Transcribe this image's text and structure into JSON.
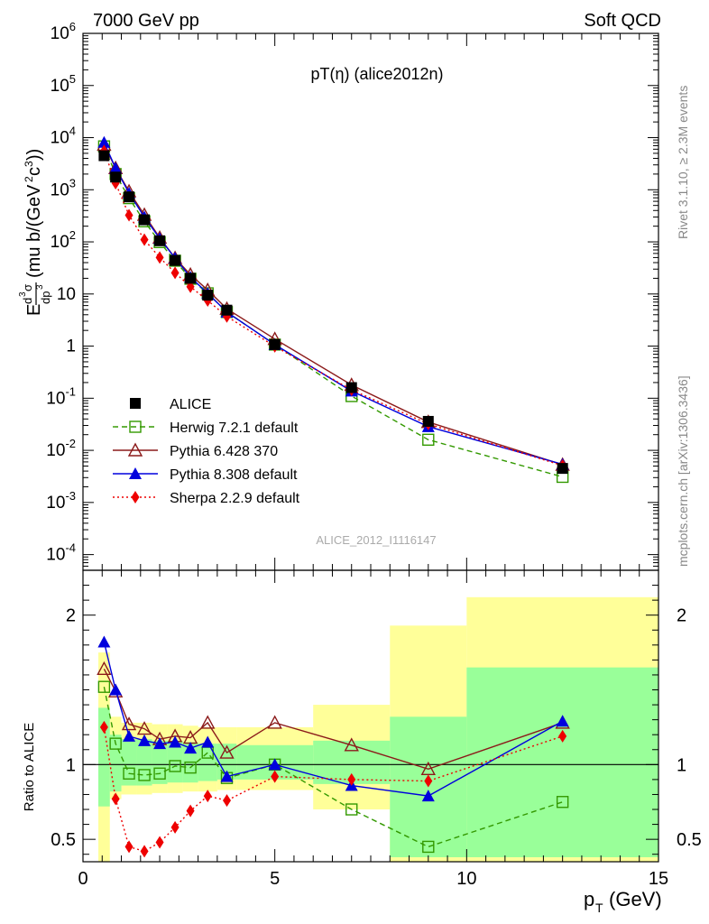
{
  "header": {
    "left": "7000 GeV pp",
    "right": "Soft QCD"
  },
  "title": "pT(η) (alice2012n)",
  "side_text": {
    "rivet": "Rivet 3.1.10, ≥ 2.3M events",
    "mcplots": "mcplots.cern.ch [arXiv:1306.3436]"
  },
  "watermark": "ALICE_2012_I1116147",
  "xlabel": "p_T (GeV)",
  "ylabel_ratio": "Ratio to ALICE",
  "chart_data": [
    {
      "type": "scatter",
      "panel": "main",
      "title": "pT(η) (alice2012n)",
      "ylabel": "E d³σ/dp³ (mu b/(GeV²c³))",
      "xlabel": "p_T (GeV)",
      "xlim": [
        0,
        15
      ],
      "ylim": [
        5e-05,
        1000000.0
      ],
      "yscale": "log",
      "y_ticks": [
        "10^-4",
        "10^-3",
        "10^-2",
        "10^-1",
        "1",
        "10",
        "10^2",
        "10^3",
        "10^4",
        "10^5",
        "10^6"
      ],
      "x_ticks": [
        "0",
        "5",
        "10",
        "15"
      ],
      "legend_position": "bottom-left",
      "x": [
        0.55,
        0.85,
        1.2,
        1.6,
        2.0,
        2.4,
        2.8,
        3.25,
        3.75,
        5.0,
        7.0,
        9.0,
        12.5
      ],
      "series": [
        {
          "name": "ALICE",
          "color": "#000000",
          "marker": "filled-square",
          "line": "none",
          "values": [
            4500,
            1750,
            730,
            265,
            105,
            44,
            20,
            9.5,
            4.9,
            1.07,
            0.16,
            0.036,
            0.0045
          ]
        },
        {
          "name": "Herwig 7.2.1 default",
          "color": "#339900",
          "marker": "open-square",
          "line": "dashed",
          "values": [
            6800,
            2000,
            690,
            248,
            99,
            43.5,
            19.6,
            10.3,
            4.5,
            1.07,
            0.11,
            0.016,
            0.0031
          ]
        },
        {
          "name": "Pythia 6.428 370",
          "color": "#8b1a1a",
          "marker": "open-triangle",
          "line": "solid",
          "values": [
            7300,
            2600,
            930,
            330,
            120,
            49,
            23.5,
            11.9,
            5.2,
            1.37,
            0.18,
            0.035,
            0.0053
          ]
        },
        {
          "name": "Pythia 8.308 default",
          "color": "#0000dd",
          "marker": "filled-triangle",
          "line": "solid",
          "values": [
            8100,
            2600,
            860,
            300,
            116,
            49,
            21,
            10.3,
            4.5,
            1.07,
            0.137,
            0.0285,
            0.0054
          ]
        },
        {
          "name": "Sherpa 2.2.9 default",
          "color": "#ee0000",
          "marker": "filled-diamond",
          "line": "dotted",
          "values": [
            5550,
            1340,
            325,
            110,
            50,
            25.5,
            13.8,
            7.5,
            3.7,
            0.99,
            0.145,
            0.032,
            0.0051
          ]
        }
      ]
    },
    {
      "type": "line",
      "panel": "ratio",
      "ylabel": "Ratio to ALICE",
      "xlabel": "p_T (GeV)",
      "xlim": [
        0,
        15
      ],
      "ylim": [
        0.35,
        2.3
      ],
      "y_ticks": [
        "0.5",
        "1",
        "2"
      ],
      "x": [
        0.55,
        0.85,
        1.2,
        1.6,
        2.0,
        2.4,
        2.8,
        3.25,
        3.75,
        5.0,
        7.0,
        9.0,
        12.5
      ],
      "band_edges": [
        0.4,
        0.7,
        1.0,
        1.4,
        1.8,
        2.2,
        2.6,
        3.0,
        3.5,
        4.0,
        6.0,
        8.0,
        10.0,
        15.0
      ],
      "band_green": [
        [
          0.72,
          1.38
        ],
        [
          0.82,
          1.2
        ],
        [
          0.86,
          1.17
        ],
        [
          0.86,
          1.17
        ],
        [
          0.87,
          1.16
        ],
        [
          0.88,
          1.16
        ],
        [
          0.88,
          1.15
        ],
        [
          0.89,
          1.14
        ],
        [
          0.9,
          1.14
        ],
        [
          0.9,
          1.13
        ],
        [
          0.87,
          1.16
        ],
        [
          0.38,
          1.32
        ],
        [
          0.38,
          1.65
        ]
      ],
      "band_yellow": [
        [
          0.35,
          1.75
        ],
        [
          0.77,
          1.32
        ],
        [
          0.8,
          1.28
        ],
        [
          0.8,
          1.28
        ],
        [
          0.81,
          1.27
        ],
        [
          0.81,
          1.27
        ],
        [
          0.82,
          1.26
        ],
        [
          0.82,
          1.25
        ],
        [
          0.83,
          1.25
        ],
        [
          0.83,
          1.25
        ],
        [
          0.7,
          1.4
        ],
        [
          0.35,
          1.93
        ],
        [
          0.35,
          2.12
        ]
      ],
      "series": [
        {
          "name": "Herwig 7.2.1 default",
          "color": "#339900",
          "values": [
            1.52,
            1.14,
            0.94,
            0.93,
            0.94,
            0.99,
            0.98,
            1.08,
            0.91,
            1.0,
            0.7,
            0.45,
            0.75
          ]
        },
        {
          "name": "Pythia 6.428 370",
          "color": "#8b1a1a",
          "values": [
            1.64,
            1.49,
            1.27,
            1.24,
            1.17,
            1.19,
            1.18,
            1.28,
            1.08,
            1.28,
            1.13,
            0.97,
            1.28
          ]
        },
        {
          "name": "Pythia 8.308 default",
          "color": "#0000dd",
          "values": [
            1.82,
            1.5,
            1.19,
            1.16,
            1.14,
            1.15,
            1.11,
            1.15,
            0.92,
            1.0,
            0.86,
            0.79,
            1.29
          ]
        },
        {
          "name": "Sherpa 2.2.9 default",
          "color": "#ee0000",
          "values": [
            1.25,
            0.77,
            0.45,
            0.42,
            0.48,
            0.58,
            0.69,
            0.79,
            0.76,
            0.92,
            0.9,
            0.89,
            1.19
          ]
        }
      ]
    }
  ]
}
